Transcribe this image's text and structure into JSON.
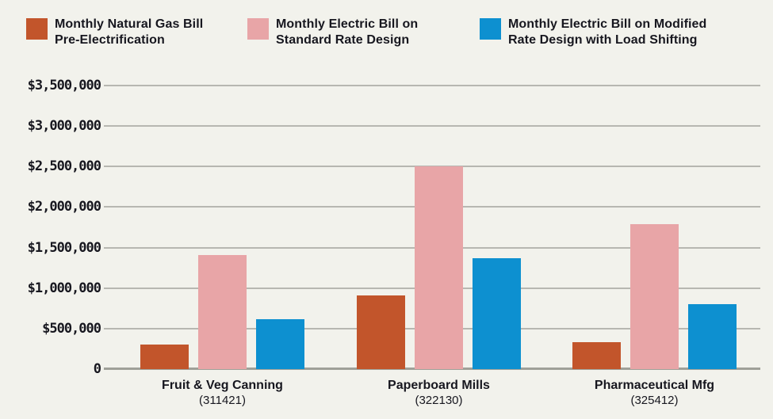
{
  "legend": {
    "items": [
      {
        "line1": "Monthly Natural Gas Bill",
        "line2": "Pre-Electrification"
      },
      {
        "line1": "Monthly Electric Bill on",
        "line2": "Standard Rate Design"
      },
      {
        "line1": "Monthly Electric Bill on Modified",
        "line2": "Rate Design with Load Shifting"
      }
    ]
  },
  "colors": {
    "background": "#f2f2ec",
    "text": "#17171f",
    "gridline": "#b7b7b1",
    "axis_line": "#9fa098",
    "gas": "#c2552b",
    "electric_standard": "#e8a5a7",
    "electric_modified": "#0d90d0"
  },
  "chart_data": {
    "type": "bar",
    "categories": [
      "Fruit & Veg Canning",
      "Paperboard Mills",
      "Pharmaceutical Mfg"
    ],
    "category_codes": [
      "(311421)",
      "(322130)",
      "(325412)"
    ],
    "series": [
      {
        "name": "Monthly Natural Gas Bill Pre-Electrification",
        "color": "#c2552b",
        "values": [
          300000,
          910000,
          330000
        ]
      },
      {
        "name": "Monthly Electric Bill on Standard Rate Design",
        "color": "#e8a5a7",
        "values": [
          1410000,
          2500000,
          1790000
        ]
      },
      {
        "name": "Monthly Electric Bill on Modified Rate Design with Load Shifting",
        "color": "#0d90d0",
        "values": [
          620000,
          1370000,
          800000
        ]
      }
    ],
    "ylim": [
      0,
      3500000
    ],
    "yticks": [
      {
        "value": 0,
        "label": "0"
      },
      {
        "value": 500000,
        "label": "$500,000"
      },
      {
        "value": 1000000,
        "label": "$1,000,000"
      },
      {
        "value": 1500000,
        "label": "$1,500,000"
      },
      {
        "value": 2000000,
        "label": "$2,000,000"
      },
      {
        "value": 2500000,
        "label": "$2,500,000"
      },
      {
        "value": 3000000,
        "label": "$3,000,000"
      },
      {
        "value": 3500000,
        "label": "$3,500,000"
      }
    ],
    "grid": true,
    "legend_position": "top"
  }
}
